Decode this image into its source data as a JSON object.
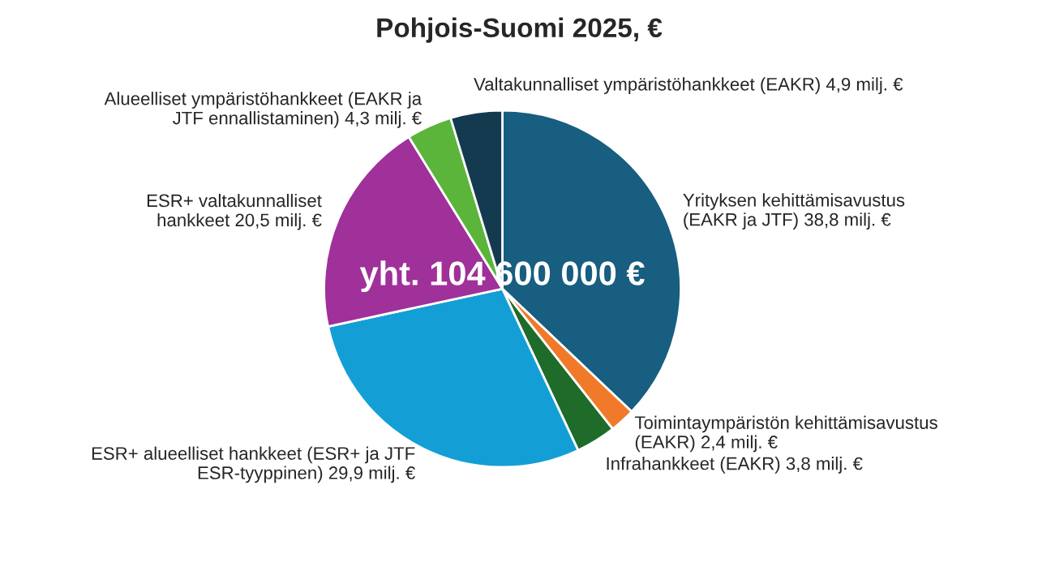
{
  "chart_data": {
    "type": "pie",
    "title": "Pohjois-Suomi 2025, €",
    "categories": [
      "Yrityksen kehittämisavustus\n(EAKR ja JTF)",
      "Toimintaympäristön kehittämisavustus\n(EAKR)",
      "Infrahankkeet (EAKR)",
      "ESR+ alueelliset hankkeet (ESR+ ja JTF\nESR-tyyppinen)",
      "ESR+ valtakunnalliset\nhankkeet",
      "Alueelliset ympäristöhankkeet (EAKR ja\nJTF ennallistaminen)",
      "Valtakunnalliset ympäristöhankkeet (EAKR)"
    ],
    "values": [
      38.8,
      2.4,
      3.8,
      29.9,
      20.5,
      4.3,
      4.9
    ],
    "value_labels": [
      "38,8 milj. €",
      "2,4 milj. €",
      "3,8 milj. €",
      "29,9 milj. €",
      "20,5 milj. €",
      "4,3 milj. €",
      "4,9 milj. €"
    ],
    "colors": [
      "#175e80",
      "#f07a2a",
      "#1e6b2a",
      "#139fd6",
      "#a0309a",
      "#5ab53a",
      "#143a50"
    ],
    "annotations": [
      "yht. 104 600 000 €"
    ],
    "legend": false
  }
}
